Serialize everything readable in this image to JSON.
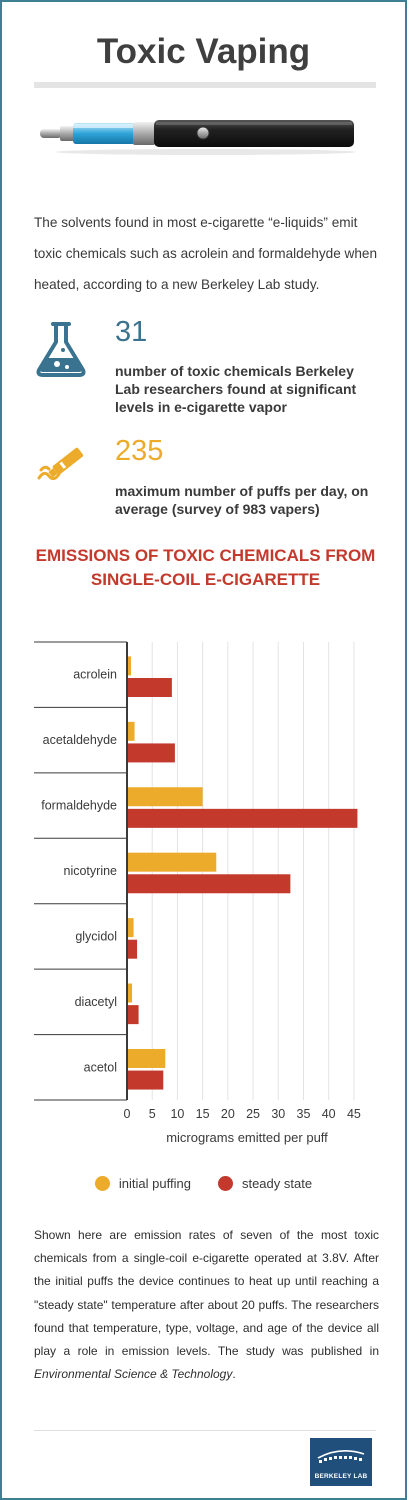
{
  "header": {
    "title": "Toxic Vaping"
  },
  "intro": "The solvents found in most e-cigarette “e-liquids” emit toxic chemicals such as acrolein and formaldehyde when heated, according to a new Berkeley Lab study.",
  "stats": [
    {
      "value": "31",
      "text": "number of toxic chemicals Berkeley Lab researchers found at significant levels in e-cigarette vapor",
      "icon": "flask-icon"
    },
    {
      "value": "235",
      "text": "maximum number of puffs per day, on average (survey of 983 vapers)",
      "icon": "ecig-smoke-icon"
    }
  ],
  "colors": {
    "blue": "#3a7390",
    "orange": "#ecab2a",
    "red": "#c33a2d",
    "border": "#3f7f94"
  },
  "chart_data": {
    "type": "bar",
    "orientation": "horizontal",
    "title": "EMISSIONS OF TOXIC CHEMICALS FROM SINGLE-COIL E-CIGARETTE",
    "categories": [
      "acrolein",
      "acetaldehyde",
      "formaldehyde",
      "nicotyrine",
      "glycidol",
      "diacetyl",
      "acetol"
    ],
    "series": [
      {
        "name": "initial puffing",
        "color": "#ecab2a",
        "values": [
          0.6,
          1.3,
          14.8,
          17.5,
          1.1,
          0.8,
          7.4
        ]
      },
      {
        "name": "steady state",
        "color": "#c33a2d",
        "values": [
          8.7,
          9.3,
          45.5,
          32.2,
          1.8,
          2.1,
          7.0
        ]
      }
    ],
    "xticks": [
      0,
      5,
      10,
      15,
      20,
      25,
      30,
      35,
      40,
      45
    ],
    "xlim": [
      0,
      47
    ],
    "xlabel": "micrograms emitted per puff",
    "ylabel": "",
    "legend": "bottom",
    "grid": "vertical"
  },
  "legend": {
    "initial": "initial puffing",
    "steady": "steady state"
  },
  "body": {
    "text": "Shown here are emission rates of seven of the most toxic chemicals from a single-coil e-cigarette operated at 3.8V. After the initial puffs the device continues to heat up until reaching a \"steady state\" temperature after about 20 puffs. The researchers found that temperature, type, voltage, and age of the device all play a role in emission levels. The study was published in ",
    "journal": "Environmental Science & Technology",
    "end": "."
  },
  "logo": {
    "text": "BERKELEY LAB"
  }
}
